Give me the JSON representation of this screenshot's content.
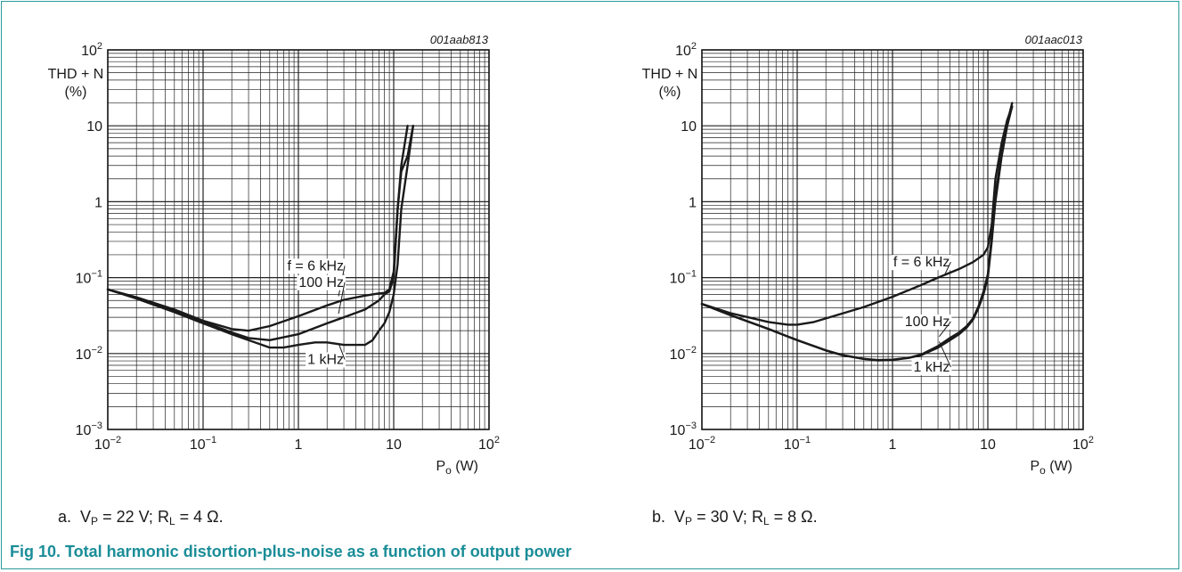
{
  "figure": {
    "title": "Fig 10. Total harmonic distortion-plus-noise as a function of output power",
    "border_color": "#2a9a9c",
    "title_color": "#1a8d98"
  },
  "chart_data": [
    {
      "type": "line",
      "id": "001aab813",
      "caption": {
        "prefix": "a.",
        "vp_value": "= 22 V;",
        "rl_value": "= 4 Ω."
      },
      "ylabel_lines": [
        "THD + N",
        "(%)"
      ],
      "xlabel": {
        "symbol": "P",
        "sub": "o",
        "unit": "(W)"
      },
      "x_scale": "log",
      "y_scale": "log",
      "xlim": [
        0.01,
        100
      ],
      "ylim": [
        0.001,
        100
      ],
      "grid": true,
      "x_ticks": [
        {
          "v": 0.01,
          "base": "10",
          "exp": "−2"
        },
        {
          "v": 0.1,
          "base": "10",
          "exp": "−1"
        },
        {
          "v": 1,
          "base": "1",
          "exp": ""
        },
        {
          "v": 10,
          "base": "10",
          "exp": ""
        },
        {
          "v": 100,
          "base": "10",
          "exp": "2"
        }
      ],
      "y_ticks": [
        {
          "v": 100,
          "base": "10",
          "exp": "2"
        },
        {
          "v": 10,
          "base": "10",
          "exp": ""
        },
        {
          "v": 1,
          "base": "1",
          "exp": ""
        },
        {
          "v": 0.1,
          "base": "10",
          "exp": "−1"
        },
        {
          "v": 0.01,
          "base": "10",
          "exp": "−2"
        },
        {
          "v": 0.001,
          "base": "10",
          "exp": "−3"
        }
      ],
      "series": [
        {
          "name": "f = 6 kHz",
          "x": [
            0.01,
            0.02,
            0.05,
            0.1,
            0.2,
            0.3,
            0.5,
            1,
            2,
            3,
            5,
            7,
            8,
            9,
            10,
            11,
            12,
            14
          ],
          "y": [
            0.07,
            0.055,
            0.038,
            0.027,
            0.021,
            0.02,
            0.023,
            0.031,
            0.043,
            0.051,
            0.058,
            0.062,
            0.063,
            0.07,
            0.12,
            0.8,
            3,
            10
          ],
          "label_at": [
            3.0,
            0.125
          ]
        },
        {
          "name": "100 Hz",
          "x": [
            0.01,
            0.02,
            0.05,
            0.1,
            0.2,
            0.3,
            0.5,
            1,
            2,
            3,
            5,
            7,
            8,
            9,
            10,
            11,
            12,
            14,
            16
          ],
          "y": [
            0.07,
            0.054,
            0.036,
            0.026,
            0.019,
            0.016,
            0.015,
            0.018,
            0.025,
            0.03,
            0.038,
            0.05,
            0.06,
            0.066,
            0.1,
            0.8,
            2.5,
            4,
            10
          ],
          "label_at": [
            3.0,
            0.076
          ]
        },
        {
          "name": "1 kHz",
          "x": [
            0.01,
            0.02,
            0.05,
            0.1,
            0.2,
            0.3,
            0.5,
            0.7,
            1,
            1.5,
            2,
            3,
            4,
            5,
            6,
            7,
            8,
            9,
            10,
            11,
            12,
            14,
            16
          ],
          "y": [
            0.07,
            0.053,
            0.035,
            0.025,
            0.018,
            0.015,
            0.012,
            0.012,
            0.013,
            0.014,
            0.014,
            0.013,
            0.013,
            0.013,
            0.015,
            0.02,
            0.025,
            0.035,
            0.06,
            0.15,
            0.8,
            3,
            10
          ],
          "label_at": [
            3.0,
            0.0073
          ]
        }
      ]
    },
    {
      "type": "line",
      "id": "001aac013",
      "caption": {
        "prefix": "b.",
        "vp_value": "= 30 V;",
        "rl_value": "= 8 Ω."
      },
      "ylabel_lines": [
        "THD + N",
        "(%)"
      ],
      "xlabel": {
        "symbol": "P",
        "sub": "o",
        "unit": "(W)"
      },
      "x_scale": "log",
      "y_scale": "log",
      "xlim": [
        0.01,
        100
      ],
      "ylim": [
        0.001,
        100
      ],
      "grid": true,
      "x_ticks": [
        {
          "v": 0.01,
          "base": "10",
          "exp": "−2"
        },
        {
          "v": 0.1,
          "base": "10",
          "exp": "−1"
        },
        {
          "v": 1,
          "base": "1",
          "exp": ""
        },
        {
          "v": 10,
          "base": "10",
          "exp": ""
        },
        {
          "v": 100,
          "base": "10",
          "exp": "2"
        }
      ],
      "y_ticks": [
        {
          "v": 100,
          "base": "10",
          "exp": "2"
        },
        {
          "v": 10,
          "base": "10",
          "exp": ""
        },
        {
          "v": 1,
          "base": "1",
          "exp": ""
        },
        {
          "v": 0.1,
          "base": "10",
          "exp": "−1"
        },
        {
          "v": 0.01,
          "base": "10",
          "exp": "−2"
        },
        {
          "v": 0.001,
          "base": "10",
          "exp": "−3"
        }
      ],
      "series": [
        {
          "name": "f = 6 kHz",
          "x": [
            0.01,
            0.02,
            0.05,
            0.08,
            0.1,
            0.15,
            0.2,
            0.5,
            1,
            2,
            3,
            5,
            7,
            9,
            10,
            11,
            12,
            14,
            16,
            18
          ],
          "y": [
            0.045,
            0.034,
            0.026,
            0.024,
            0.024,
            0.026,
            0.029,
            0.041,
            0.056,
            0.08,
            0.1,
            0.13,
            0.16,
            0.2,
            0.25,
            0.5,
            2,
            6,
            12,
            18
          ],
          "label_at": [
            4.0,
            0.14
          ]
        },
        {
          "name": "100 Hz",
          "x": [
            0.01,
            0.02,
            0.05,
            0.1,
            0.2,
            0.3,
            0.5,
            0.7,
            1,
            1.5,
            2,
            3,
            4,
            5,
            6,
            7,
            8,
            9,
            10,
            11,
            12,
            14,
            16,
            18
          ],
          "y": [
            0.045,
            0.032,
            0.021,
            0.015,
            0.011,
            0.0095,
            0.0085,
            0.0082,
            0.0083,
            0.0088,
            0.0095,
            0.012,
            0.015,
            0.018,
            0.022,
            0.028,
            0.04,
            0.06,
            0.1,
            0.3,
            1,
            4,
            10,
            18
          ],
          "label_at": [
            4.0,
            0.023
          ]
        },
        {
          "name": "1 kHz",
          "x": [
            0.01,
            0.02,
            0.05,
            0.1,
            0.2,
            0.3,
            0.5,
            0.7,
            1,
            1.5,
            2,
            3,
            4,
            5,
            6,
            7,
            8,
            9,
            10,
            11,
            12,
            14,
            16,
            18
          ],
          "y": [
            0.045,
            0.032,
            0.021,
            0.015,
            0.011,
            0.0095,
            0.0085,
            0.0081,
            0.0082,
            0.0088,
            0.0097,
            0.0125,
            0.016,
            0.019,
            0.023,
            0.029,
            0.042,
            0.065,
            0.11,
            0.35,
            1.2,
            4.5,
            11,
            20
          ],
          "label_at": [
            4.0,
            0.0058
          ]
        }
      ]
    }
  ]
}
